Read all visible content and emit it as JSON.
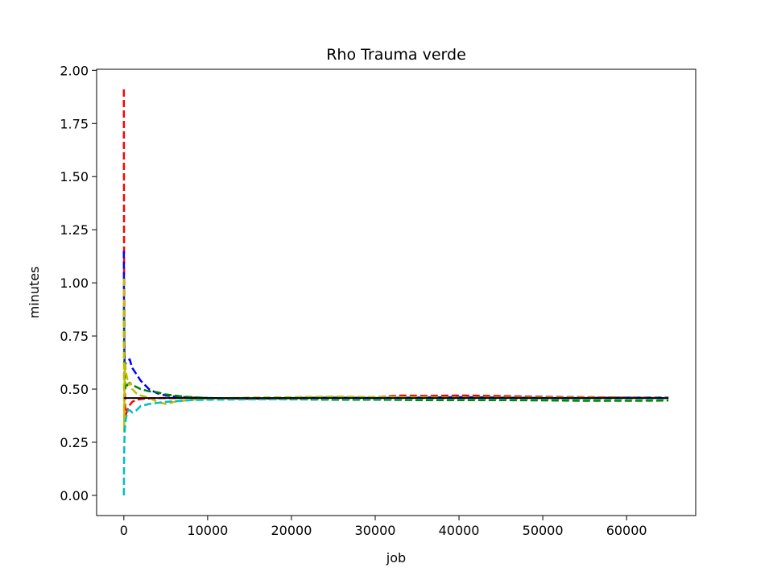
{
  "chart_data": {
    "type": "line",
    "title": "Rho Trauma verde",
    "xlabel": "job",
    "ylabel": "minutes",
    "xlim": [
      -3250,
      68250
    ],
    "ylim": [
      -0.095,
      2.005
    ],
    "xticks": [
      0,
      10000,
      20000,
      30000,
      40000,
      50000,
      60000
    ],
    "yticks": [
      0.0,
      0.25,
      0.5,
      0.75,
      1.0,
      1.25,
      1.5,
      1.75,
      2.0
    ],
    "xtick_labels": [
      "0",
      "10000",
      "20000",
      "30000",
      "40000",
      "50000",
      "60000"
    ],
    "ytick_labels": [
      "0.00",
      "0.25",
      "0.50",
      "0.75",
      "1.00",
      "1.25",
      "1.50",
      "1.75",
      "2.00"
    ],
    "grid": false,
    "series": [
      {
        "color": "#ff0000",
        "style": "dashed",
        "x": [
          0,
          10,
          30,
          60,
          100,
          150,
          250,
          400,
          600,
          1000,
          1500,
          2500,
          4000,
          6000,
          8000,
          10000,
          15000,
          20000,
          25000,
          30000,
          33000,
          36000,
          40000,
          44000,
          48000,
          52000,
          56000,
          60000,
          64000,
          65000
        ],
        "y": [
          1.91,
          1.5,
          1.05,
          0.75,
          0.55,
          0.42,
          0.38,
          0.4,
          0.42,
          0.44,
          0.45,
          0.455,
          0.458,
          0.458,
          0.46,
          0.458,
          0.455,
          0.458,
          0.46,
          0.462,
          0.47,
          0.468,
          0.47,
          0.468,
          0.465,
          0.463,
          0.462,
          0.46,
          0.458,
          0.457
        ]
      },
      {
        "color": "#0000ff",
        "style": "dashed",
        "x": [
          0,
          20,
          50,
          100,
          200,
          400,
          700,
          1000,
          1500,
          2000,
          3000,
          4000,
          5000,
          6000,
          8000,
          10000,
          15000,
          20000,
          25000,
          30000,
          35000,
          40000,
          45000,
          50000,
          55000,
          60000,
          65000
        ],
        "y": [
          1.15,
          0.85,
          0.7,
          0.6,
          0.62,
          0.63,
          0.64,
          0.6,
          0.57,
          0.54,
          0.5,
          0.48,
          0.47,
          0.465,
          0.46,
          0.458,
          0.455,
          0.458,
          0.46,
          0.458,
          0.46,
          0.462,
          0.46,
          0.458,
          0.458,
          0.46,
          0.46
        ]
      },
      {
        "color": "#008000",
        "style": "dashed",
        "x": [
          0,
          20,
          50,
          100,
          200,
          400,
          700,
          1000,
          1500,
          2000,
          3000,
          4000,
          5000,
          7000,
          10000,
          15000,
          20000,
          25000,
          30000,
          35000,
          40000,
          45000,
          50000,
          55000,
          60000,
          65000
        ],
        "y": [
          0.88,
          0.7,
          0.62,
          0.55,
          0.5,
          0.52,
          0.53,
          0.52,
          0.51,
          0.5,
          0.49,
          0.485,
          0.475,
          0.465,
          0.458,
          0.455,
          0.452,
          0.45,
          0.45,
          0.448,
          0.448,
          0.448,
          0.447,
          0.445,
          0.445,
          0.446
        ]
      },
      {
        "color": "#bfbf00",
        "style": "dashed",
        "x": [
          0,
          20,
          40,
          80,
          150,
          250,
          400,
          600,
          800,
          1000,
          1500,
          2000,
          3000,
          4000,
          5000,
          6000,
          8000,
          10000,
          15000,
          20000,
          25000,
          30000,
          35000,
          40000,
          45000,
          50000,
          55000,
          60000,
          65000
        ],
        "y": [
          1.02,
          0.45,
          0.3,
          0.52,
          0.62,
          0.58,
          0.55,
          0.52,
          0.53,
          0.5,
          0.48,
          0.47,
          0.46,
          0.44,
          0.43,
          0.44,
          0.45,
          0.455,
          0.46,
          0.462,
          0.465,
          0.463,
          0.462,
          0.46,
          0.46,
          0.46,
          0.46,
          0.458,
          0.458
        ]
      },
      {
        "color": "#00bfbf",
        "style": "dashed",
        "x": [
          0,
          10,
          30,
          60,
          100,
          200,
          350,
          500,
          700,
          1000,
          1500,
          2000,
          3000,
          4000,
          5000,
          6000,
          8000,
          10000,
          15000,
          20000,
          25000,
          30000,
          35000,
          40000,
          45000,
          50000,
          55000,
          60000,
          65000
        ],
        "y": [
          0.0,
          0.08,
          0.18,
          0.25,
          0.3,
          0.35,
          0.38,
          0.4,
          0.4,
          0.39,
          0.4,
          0.42,
          0.43,
          0.435,
          0.44,
          0.443,
          0.448,
          0.45,
          0.452,
          0.453,
          0.454,
          0.454,
          0.455,
          0.455,
          0.455,
          0.455,
          0.455,
          0.456,
          0.456
        ]
      },
      {
        "color": "#000000",
        "style": "solid",
        "x": [
          0,
          65000
        ],
        "y": [
          0.458,
          0.458
        ]
      }
    ]
  }
}
